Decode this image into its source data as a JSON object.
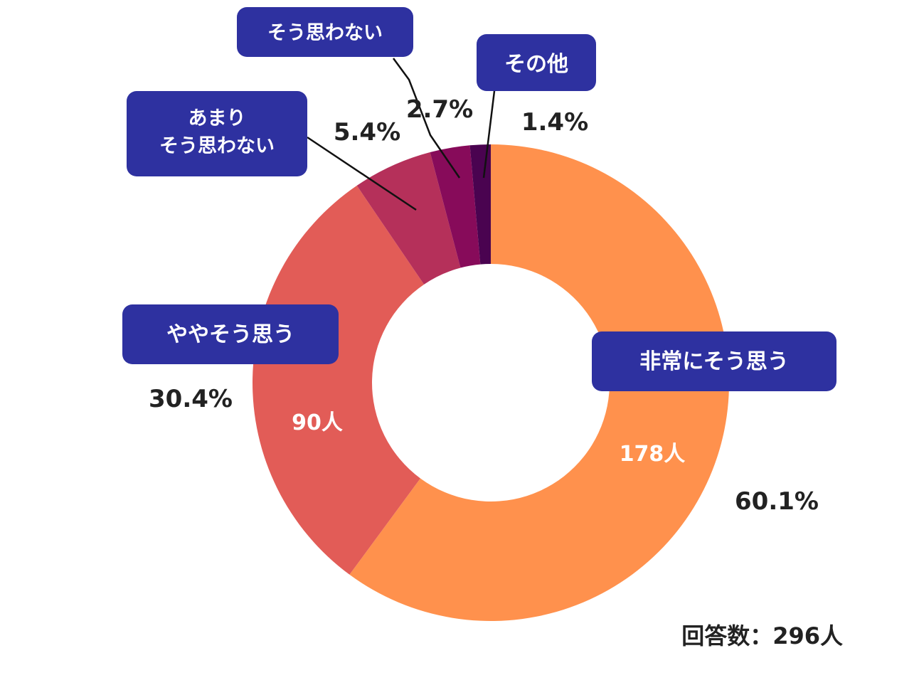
{
  "chart_data": {
    "type": "pie",
    "total_label": "回答数：296人",
    "slices": [
      {
        "label": "非常にそう思う",
        "percent": "60.1%",
        "value": 60.1,
        "count_label": "178人",
        "color": "#FF914D"
      },
      {
        "label": "ややそう思う",
        "percent": "30.4%",
        "value": 30.4,
        "count_label": "90人",
        "color": "#E25C57"
      },
      {
        "label": "あまり\nそう思わない",
        "percent": "5.4%",
        "value": 5.4,
        "count_label": "",
        "color": "#B5305A"
      },
      {
        "label": "そう思わない",
        "percent": "2.7%",
        "value": 2.7,
        "count_label": "",
        "color": "#870B5A"
      },
      {
        "label": "その他",
        "percent": "1.4%",
        "value": 1.4,
        "count_label": "",
        "color": "#4A0350"
      }
    ]
  },
  "colors": {
    "label_box": "#2E31A0",
    "leader_line": "#111111"
  }
}
